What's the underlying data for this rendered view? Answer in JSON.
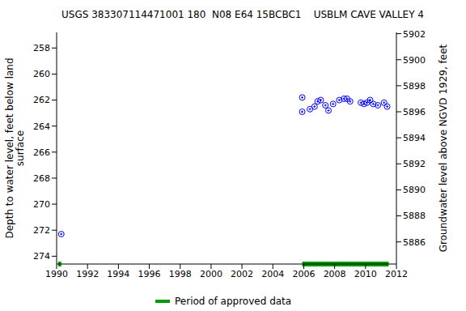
{
  "chart_data": {
    "type": "scatter",
    "title": "USGS 383307114471001 180  N08 E64 15BCBC1    USBLM CAVE VALLEY 4",
    "y_label": "Depth to water level, feet below land surface",
    "y2_label": "Groundwater level above NGVD 1929, feet",
    "xlim": [
      1990,
      2012
    ],
    "xticks": [
      1990,
      1992,
      1994,
      1996,
      1998,
      2000,
      2002,
      2004,
      2006,
      2008,
      2010,
      2012
    ],
    "ylim": [
      256.8,
      274.6
    ],
    "yticks": [
      258,
      260,
      262,
      264,
      266,
      268,
      270,
      272,
      274
    ],
    "y2lim": [
      5884.3,
      5902.1
    ],
    "y2ticks": [
      5886,
      5888,
      5890,
      5892,
      5894,
      5896,
      5898,
      5900,
      5902
    ],
    "grid": false,
    "series": [
      {
        "name": "Depth to water level",
        "color": "#0000ff",
        "marker": "open_circle",
        "x": [
          1990.3,
          2005.9,
          2005.9,
          2006.4,
          2006.7,
          2006.9,
          2007.1,
          2007.4,
          2007.6,
          2007.9,
          2008.3,
          2008.6,
          2008.8,
          2009.0,
          2009.7,
          2009.9,
          2010.1,
          2010.3,
          2010.5,
          2010.8,
          2011.2,
          2011.4
        ],
        "values": [
          272.3,
          261.8,
          262.9,
          262.7,
          262.5,
          262.1,
          262.0,
          262.4,
          262.8,
          262.3,
          262.0,
          261.9,
          261.9,
          262.1,
          262.2,
          262.3,
          262.2,
          262.0,
          262.3,
          262.4,
          262.2,
          262.5
        ]
      }
    ],
    "approved_periods": {
      "name": "Period of approved data",
      "color": "#009900",
      "ranges": [
        [
          1990.1,
          1990.3
        ],
        [
          2005.9,
          2011.5
        ]
      ]
    },
    "legend": "bottom"
  }
}
